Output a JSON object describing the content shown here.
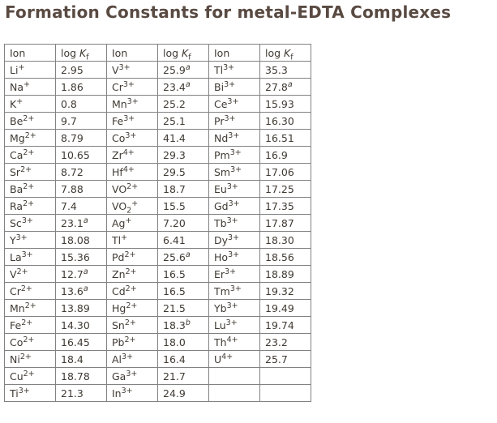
{
  "page": {
    "title": "Formation Constants for metal-EDTA Complexes"
  },
  "colors": {
    "title_text": "#594a42",
    "cell_text": "#403a33",
    "border": "#828282",
    "background": "#ffffff"
  },
  "table": {
    "columns": [
      {
        "kind": "ion",
        "label": "Ion"
      },
      {
        "kind": "logkf",
        "prefix": "log ",
        "symbol": "K",
        "subscript": "f"
      },
      {
        "kind": "ion",
        "label": "Ion"
      },
      {
        "kind": "logkf",
        "prefix": "log ",
        "symbol": "K",
        "subscript": "f"
      },
      {
        "kind": "ion",
        "label": "Ion"
      },
      {
        "kind": "logkf",
        "prefix": "log ",
        "symbol": "K",
        "subscript": "f"
      }
    ],
    "rows": [
      [
        {
          "sym": "Li",
          "sup": "+"
        },
        {
          "v": "2.95"
        },
        {
          "sym": "V",
          "sup": "3+"
        },
        {
          "v": "25.9",
          "note": "a"
        },
        {
          "sym": "Tl",
          "sup": "3+"
        },
        {
          "v": "35.3"
        }
      ],
      [
        {
          "sym": "Na",
          "sup": "+"
        },
        {
          "v": "1.86"
        },
        {
          "sym": "Cr",
          "sup": "3+"
        },
        {
          "v": "23.4",
          "note": "a"
        },
        {
          "sym": "Bi",
          "sup": "3+"
        },
        {
          "v": "27.8",
          "note": "a"
        }
      ],
      [
        {
          "sym": "K",
          "sup": "+"
        },
        {
          "v": "0.8"
        },
        {
          "sym": "Mn",
          "sup": "3+"
        },
        {
          "v": "25.2"
        },
        {
          "sym": "Ce",
          "sup": "3+"
        },
        {
          "v": "15.93"
        }
      ],
      [
        {
          "sym": "Be",
          "sup": "2+"
        },
        {
          "v": "9.7"
        },
        {
          "sym": "Fe",
          "sup": "3+"
        },
        {
          "v": "25.1"
        },
        {
          "sym": "Pr",
          "sup": "3+"
        },
        {
          "v": "16.30"
        }
      ],
      [
        {
          "sym": "Mg",
          "sup": "2+"
        },
        {
          "v": "8.79"
        },
        {
          "sym": "Co",
          "sup": "3+"
        },
        {
          "v": "41.4"
        },
        {
          "sym": "Nd",
          "sup": "3+"
        },
        {
          "v": "16.51"
        }
      ],
      [
        {
          "sym": "Ca",
          "sup": "2+"
        },
        {
          "v": "10.65"
        },
        {
          "sym": "Zr",
          "sup": "4+"
        },
        {
          "v": "29.3"
        },
        {
          "sym": "Pm",
          "sup": "3+"
        },
        {
          "v": "16.9"
        }
      ],
      [
        {
          "sym": "Sr",
          "sup": "2+"
        },
        {
          "v": "8.72"
        },
        {
          "sym": "Hf",
          "sup": "4+"
        },
        {
          "v": "29.5"
        },
        {
          "sym": "Sm",
          "sup": "3+"
        },
        {
          "v": "17.06"
        }
      ],
      [
        {
          "sym": "Ba",
          "sup": "2+"
        },
        {
          "v": "7.88"
        },
        {
          "sym": "VO",
          "sup": "2+"
        },
        {
          "v": "18.7"
        },
        {
          "sym": "Eu",
          "sup": "3+"
        },
        {
          "v": "17.25"
        }
      ],
      [
        {
          "sym": "Ra",
          "sup": "2+"
        },
        {
          "v": "7.4"
        },
        {
          "sym": "VO",
          "sub": "2",
          "sup": "+"
        },
        {
          "v": "15.5"
        },
        {
          "sym": "Gd",
          "sup": "3+"
        },
        {
          "v": "17.35"
        }
      ],
      [
        {
          "sym": "Sc",
          "sup": "3+"
        },
        {
          "v": "23.1",
          "note": "a"
        },
        {
          "sym": "Ag",
          "sup": "+"
        },
        {
          "v": "7.20"
        },
        {
          "sym": "Tb",
          "sup": "3+"
        },
        {
          "v": "17.87"
        }
      ],
      [
        {
          "sym": "Y",
          "sup": "3+"
        },
        {
          "v": "18.08"
        },
        {
          "sym": "Tl",
          "sup": "+"
        },
        {
          "v": "6.41"
        },
        {
          "sym": "Dy",
          "sup": "3+"
        },
        {
          "v": "18.30"
        }
      ],
      [
        {
          "sym": "La",
          "sup": "3+"
        },
        {
          "v": "15.36"
        },
        {
          "sym": "Pd",
          "sup": "2+"
        },
        {
          "v": "25.6",
          "note": "a"
        },
        {
          "sym": "Ho",
          "sup": "3+"
        },
        {
          "v": "18.56"
        }
      ],
      [
        {
          "sym": "V",
          "sup": "2+"
        },
        {
          "v": "12.7",
          "note": "a"
        },
        {
          "sym": "Zn",
          "sup": "2+"
        },
        {
          "v": "16.5"
        },
        {
          "sym": "Er",
          "sup": "3+"
        },
        {
          "v": "18.89"
        }
      ],
      [
        {
          "sym": "Cr",
          "sup": "2+"
        },
        {
          "v": "13.6",
          "note": "a"
        },
        {
          "sym": "Cd",
          "sup": "2+"
        },
        {
          "v": "16.5"
        },
        {
          "sym": "Tm",
          "sup": "3+"
        },
        {
          "v": "19.32"
        }
      ],
      [
        {
          "sym": "Mn",
          "sup": "2+"
        },
        {
          "v": "13.89"
        },
        {
          "sym": "Hg",
          "sup": "2+"
        },
        {
          "v": "21.5"
        },
        {
          "sym": "Yb",
          "sup": "3+"
        },
        {
          "v": "19.49"
        }
      ],
      [
        {
          "sym": "Fe",
          "sup": "2+"
        },
        {
          "v": "14.30"
        },
        {
          "sym": "Sn",
          "sup": "2+"
        },
        {
          "v": "18.3",
          "note": "b"
        },
        {
          "sym": "Lu",
          "sup": "3+"
        },
        {
          "v": "19.74"
        }
      ],
      [
        {
          "sym": "Co",
          "sup": "2+"
        },
        {
          "v": "16.45"
        },
        {
          "sym": "Pb",
          "sup": "2+"
        },
        {
          "v": "18.0"
        },
        {
          "sym": "Th",
          "sup": "4+"
        },
        {
          "v": "23.2"
        }
      ],
      [
        {
          "sym": "Ni",
          "sup": "2+"
        },
        {
          "v": "18.4"
        },
        {
          "sym": "Al",
          "sup": "3+"
        },
        {
          "v": "16.4"
        },
        {
          "sym": "U",
          "sup": "4+"
        },
        {
          "v": "25.7"
        }
      ],
      [
        {
          "sym": "Cu",
          "sup": "2+"
        },
        {
          "v": "18.78"
        },
        {
          "sym": "Ga",
          "sup": "3+"
        },
        {
          "v": "21.7"
        },
        {
          "sym": ""
        },
        {
          "v": ""
        }
      ],
      [
        {
          "sym": "Ti",
          "sup": "3+"
        },
        {
          "v": "21.3"
        },
        {
          "sym": "In",
          "sup": "3+"
        },
        {
          "v": "24.9"
        },
        {
          "sym": ""
        },
        {
          "v": ""
        }
      ]
    ]
  }
}
